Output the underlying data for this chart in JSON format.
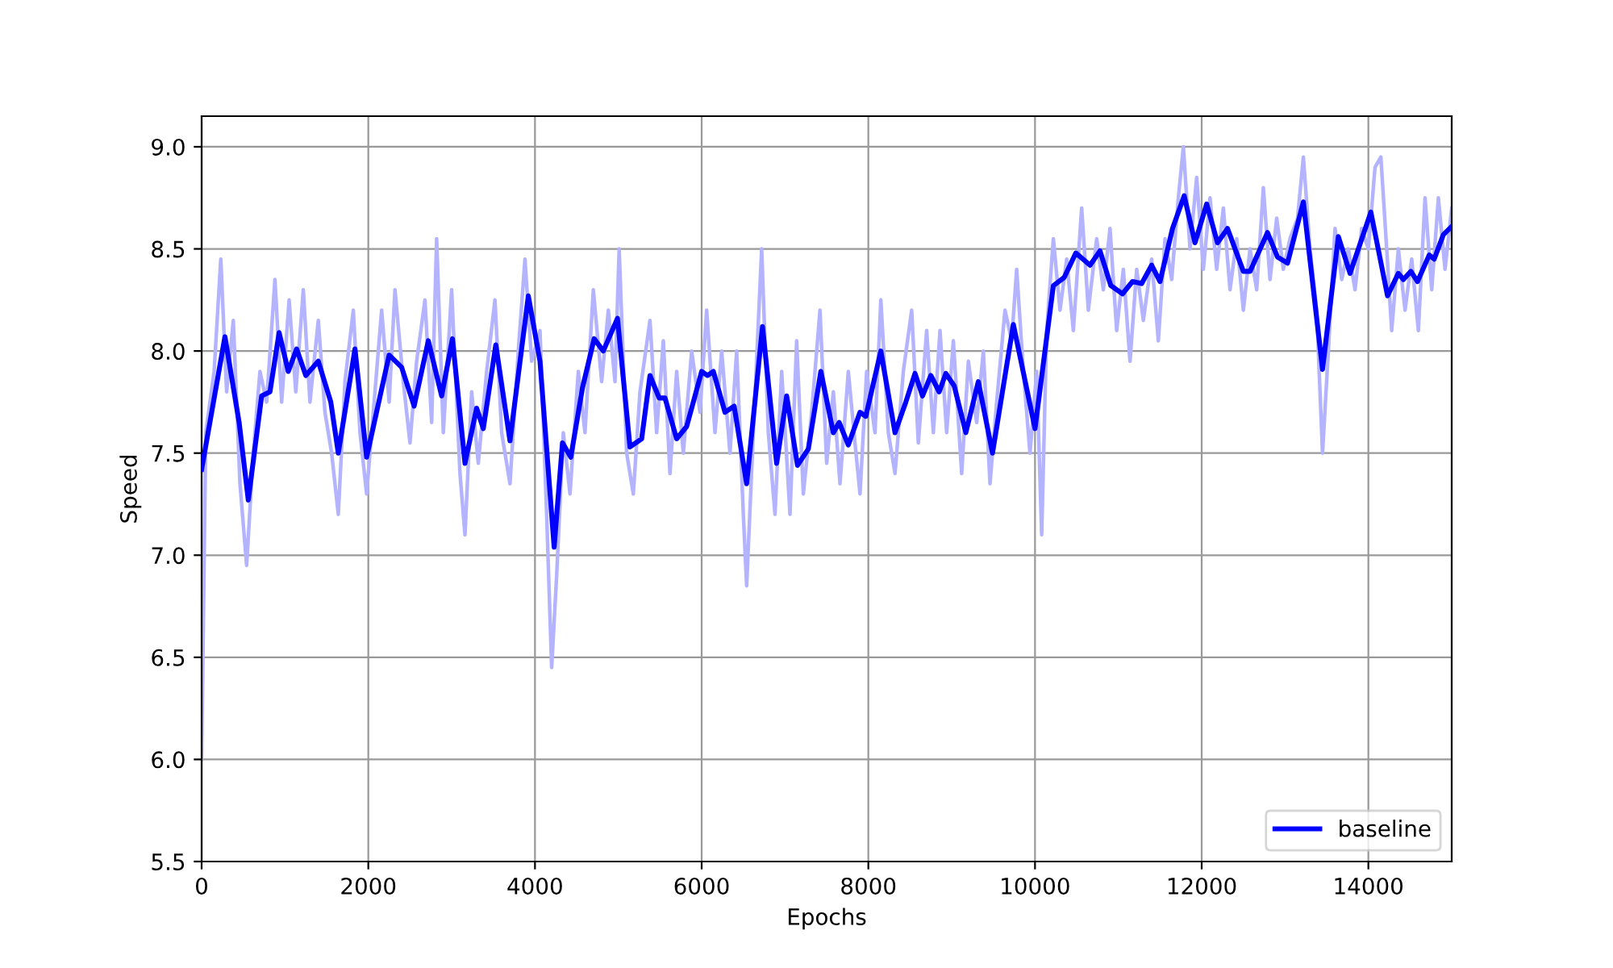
{
  "chart_data": {
    "type": "line",
    "xlabel": "Epochs",
    "ylabel": "Speed",
    "xlim": [
      0,
      15000
    ],
    "xticks": [
      0,
      2000,
      4000,
      6000,
      8000,
      10000,
      12000,
      14000
    ],
    "ylim": [
      5.5,
      9.15
    ],
    "yticks": [
      5.5,
      {
        "value": 6,
        "label": "6.0"
      },
      6.5,
      {
        "value": 7,
        "label": "7.0"
      },
      7.5,
      {
        "value": 8,
        "label": "8.0"
      },
      8.5,
      {
        "value": 9,
        "label": "9.0"
      }
    ],
    "grid": true,
    "legend": "bottom right",
    "series": [
      {
        "color": "#b3b3ff",
        "x": [
          0,
          50,
          150,
          230,
          300,
          380,
          460,
          540,
          620,
          700,
          780,
          880,
          960,
          1050,
          1130,
          1220,
          1300,
          1400,
          1480,
          1560,
          1640,
          1720,
          1820,
          1900,
          1980,
          2080,
          2160,
          2250,
          2320,
          2420,
          2500,
          2580,
          2680,
          2760,
          2820,
          2900,
          3000,
          3100,
          3160,
          3240,
          3320,
          3420,
          3520,
          3600,
          3700,
          3800,
          3880,
          3960,
          4060,
          4140,
          4200,
          4260,
          4340,
          4420,
          4520,
          4600,
          4700,
          4800,
          4880,
          4960,
          5010,
          5100,
          5180,
          5260,
          5380,
          5460,
          5540,
          5620,
          5700,
          5780,
          5880,
          5980,
          6060,
          6160,
          6240,
          6340,
          6420,
          6500,
          6540,
          6620,
          6720,
          6800,
          6880,
          6960,
          7060,
          7140,
          7220,
          7320,
          7420,
          7500,
          7580,
          7660,
          7760,
          7840,
          7900,
          7980,
          8080,
          8150,
          8240,
          8320,
          8420,
          8520,
          8600,
          8700,
          8780,
          8860,
          8940,
          9020,
          9120,
          9200,
          9300,
          9380,
          9460,
          9540,
          9640,
          9720,
          9780,
          9860,
          9940,
          10020,
          10080,
          10140,
          10220,
          10300,
          10380,
          10460,
          10560,
          10640,
          10740,
          10820,
          10900,
          10980,
          11060,
          11140,
          11220,
          11300,
          11400,
          11480,
          11560,
          11640,
          11720,
          11780,
          11860,
          11940,
          12020,
          12100,
          12180,
          12260,
          12340,
          12420,
          12500,
          12580,
          12660,
          12740,
          12820,
          12900,
          12980,
          13060,
          13150,
          13220,
          13300,
          13380,
          13450,
          13520,
          13600,
          13680,
          13760,
          13840,
          13920,
          14000,
          14080,
          14150,
          14220,
          14280,
          14360,
          14440,
          14520,
          14600,
          14680,
          14760,
          14840,
          14920,
          15000
        ],
        "values": [
          6.0,
          7.6,
          7.9,
          8.45,
          7.8,
          8.15,
          7.35,
          6.95,
          7.5,
          7.9,
          7.75,
          8.35,
          7.75,
          8.25,
          7.8,
          8.3,
          7.75,
          8.15,
          7.7,
          7.5,
          7.2,
          7.85,
          8.2,
          7.6,
          7.3,
          7.8,
          8.2,
          7.75,
          8.3,
          7.85,
          7.55,
          7.95,
          8.25,
          7.65,
          8.55,
          7.6,
          8.3,
          7.4,
          7.1,
          7.8,
          7.45,
          7.9,
          8.25,
          7.6,
          7.35,
          8.0,
          8.45,
          7.95,
          8.1,
          7.2,
          6.45,
          6.9,
          7.6,
          7.3,
          7.9,
          7.6,
          8.3,
          7.85,
          8.2,
          7.85,
          8.5,
          7.5,
          7.3,
          7.8,
          8.15,
          7.6,
          8.05,
          7.4,
          7.9,
          7.5,
          8.0,
          7.7,
          8.2,
          7.6,
          8.0,
          7.5,
          8.0,
          7.2,
          6.85,
          7.6,
          8.5,
          7.6,
          7.2,
          7.9,
          7.2,
          8.05,
          7.3,
          7.7,
          8.2,
          7.45,
          7.8,
          7.35,
          7.9,
          7.55,
          7.3,
          7.9,
          7.6,
          8.25,
          7.6,
          7.4,
          7.9,
          8.2,
          7.55,
          8.1,
          7.6,
          8.1,
          7.6,
          8.05,
          7.4,
          7.95,
          7.65,
          8.0,
          7.35,
          7.75,
          8.2,
          8.05,
          8.4,
          7.9,
          7.5,
          7.9,
          7.1,
          8.1,
          8.55,
          8.2,
          8.45,
          8.1,
          8.7,
          8.2,
          8.55,
          8.3,
          8.6,
          8.1,
          8.4,
          7.95,
          8.4,
          8.15,
          8.45,
          8.05,
          8.55,
          8.35,
          8.75,
          9.0,
          8.5,
          8.85,
          8.4,
          8.75,
          8.4,
          8.7,
          8.3,
          8.55,
          8.2,
          8.5,
          8.3,
          8.8,
          8.35,
          8.65,
          8.4,
          8.55,
          8.65,
          8.95,
          8.5,
          8.2,
          7.5,
          8.0,
          8.6,
          8.35,
          8.5,
          8.3,
          8.6,
          8.5,
          8.9,
          8.95,
          8.5,
          8.1,
          8.5,
          8.2,
          8.45,
          8.1,
          8.75,
          8.3,
          8.75,
          8.4,
          8.7
        ]
      },
      {
        "name": "baseline",
        "color": "#0000ff",
        "x": [
          0,
          280,
          450,
          560,
          720,
          820,
          930,
          1040,
          1140,
          1250,
          1400,
          1550,
          1640,
          1840,
          1980,
          2250,
          2400,
          2550,
          2720,
          2880,
          3010,
          3160,
          3300,
          3380,
          3530,
          3700,
          3920,
          4060,
          4230,
          4330,
          4430,
          4570,
          4710,
          4820,
          4990,
          5140,
          5280,
          5380,
          5490,
          5560,
          5700,
          5820,
          6000,
          6070,
          6140,
          6280,
          6390,
          6540,
          6730,
          6900,
          7020,
          7150,
          7280,
          7430,
          7580,
          7650,
          7760,
          7900,
          7970,
          8150,
          8320,
          8450,
          8560,
          8650,
          8750,
          8850,
          8930,
          9030,
          9170,
          9320,
          9490,
          9740,
          10000,
          10220,
          10350,
          10490,
          10660,
          10780,
          10910,
          11050,
          11170,
          11280,
          11400,
          11500,
          11650,
          11790,
          11920,
          12060,
          12190,
          12310,
          12500,
          12580,
          12790,
          12910,
          13030,
          13220,
          13450,
          13640,
          13780,
          14030,
          14230,
          14360,
          14420,
          14510,
          14590,
          14730,
          14790,
          14900,
          15000
        ],
        "values": [
          7.42,
          8.07,
          7.65,
          7.27,
          7.78,
          7.8,
          8.09,
          7.9,
          8.01,
          7.88,
          7.95,
          7.75,
          7.5,
          8.01,
          7.48,
          7.98,
          7.92,
          7.73,
          8.05,
          7.78,
          8.06,
          7.45,
          7.72,
          7.62,
          8.03,
          7.56,
          8.27,
          7.95,
          7.04,
          7.55,
          7.48,
          7.82,
          8.06,
          8.0,
          8.16,
          7.53,
          7.57,
          7.88,
          7.77,
          7.77,
          7.57,
          7.63,
          7.9,
          7.88,
          7.9,
          7.7,
          7.73,
          7.35,
          8.12,
          7.45,
          7.78,
          7.44,
          7.52,
          7.9,
          7.6,
          7.65,
          7.54,
          7.7,
          7.68,
          8.0,
          7.6,
          7.75,
          7.89,
          7.78,
          7.88,
          7.8,
          7.89,
          7.83,
          7.6,
          7.85,
          7.5,
          8.13,
          7.62,
          8.32,
          8.36,
          8.48,
          8.42,
          8.49,
          8.32,
          8.28,
          8.34,
          8.33,
          8.42,
          8.34,
          8.6,
          8.76,
          8.53,
          8.72,
          8.53,
          8.6,
          8.39,
          8.39,
          8.58,
          8.46,
          8.43,
          8.73,
          7.91,
          8.56,
          8.38,
          8.68,
          8.27,
          8.38,
          8.35,
          8.39,
          8.34,
          8.47,
          8.45,
          8.57,
          8.61
        ]
      }
    ]
  }
}
